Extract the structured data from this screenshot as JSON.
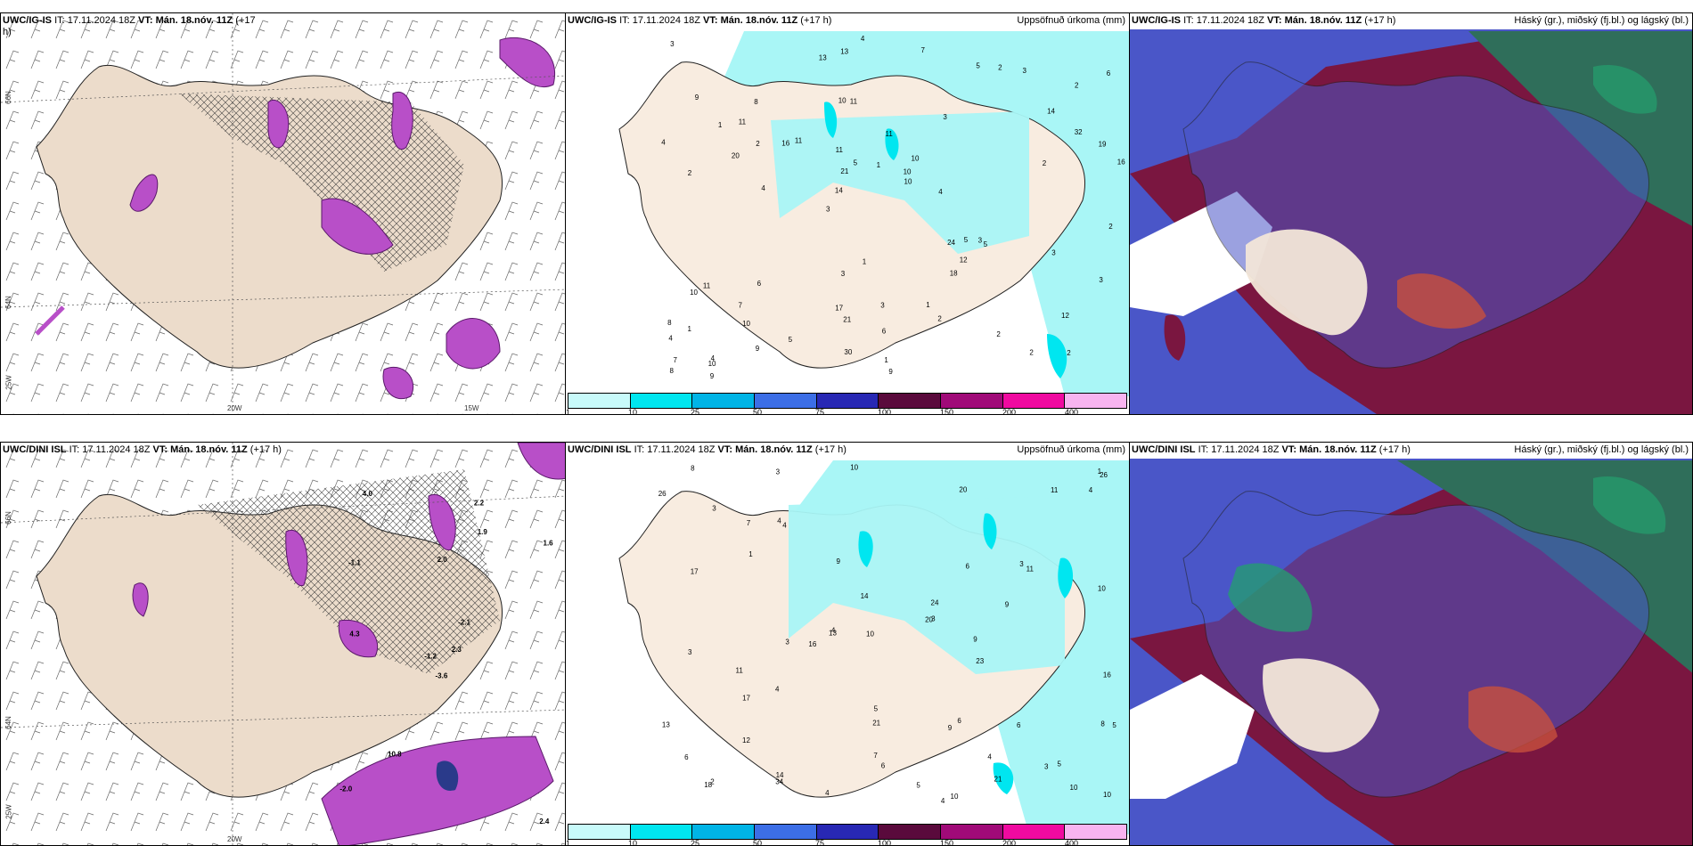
{
  "panels": [
    {
      "model": "UWC/IG-IS",
      "it": "IT: 17.11.2024 18Z",
      "vt": "VT: Mán. 18.nóv. 11Z",
      "lead": "(+17",
      "lead2": "h)",
      "right": ""
    },
    {
      "model": "UWC/IG-IS",
      "it": "IT: 17.11.2024 18Z",
      "vt": "VT: Mán. 18.nóv. 11Z",
      "lead": "(+17 h)",
      "right": "Uppsöfnuð úrkoma (mm)"
    },
    {
      "model": "UWC/IG-IS",
      "it": "IT: 17.11.2024 18Z",
      "vt": "VT: Mán. 18.nóv. 11Z",
      "lead": "(+17 h)",
      "right": "Háský (gr.), miðský (fj.bl.) og lágský (bl.)"
    },
    {
      "model": "UWC/DINI ISL",
      "it": "IT: 17.11.2024 18Z",
      "vt": "VT: Mán. 18.nóv. 11Z",
      "lead": "(+17 h)",
      "right": ""
    },
    {
      "model": "UWC/DINI ISL",
      "it": "IT: 17.11.2024 18Z",
      "vt": "VT: Mán. 18.nóv. 11Z",
      "lead": "(+17 h)",
      "right": "Uppsöfnuð úrkoma (mm)"
    },
    {
      "model": "UWC/DINI ISL",
      "it": "IT: 17.11.2024 18Z",
      "vt": "VT: Mán. 18.nóv. 11Z",
      "lead": "(+17 h)",
      "right": "Háský (gr.), miðský (fj.bl.) og lágský (bl.)"
    }
  ],
  "colorbar": {
    "ticks": [
      "1",
      "10",
      "25",
      "50",
      "75",
      "100",
      "150",
      "200",
      "400"
    ],
    "colors": [
      "#c8fafa",
      "#00e6f0",
      "#00b4e6",
      "#3c6ee6",
      "#2828b4",
      "#5a0a3c",
      "#a00a78",
      "#f00aa0",
      "#f8b4f0"
    ]
  },
  "map_labels": {
    "lat66": "66N",
    "lat64": "64N",
    "lon20": "20W",
    "lon15": "15W",
    "lon25": "25W"
  },
  "precip_numbers_top": [
    "2",
    "2",
    "2",
    "3",
    "3",
    "4",
    "10",
    "11",
    "11",
    "11",
    "4",
    "10",
    "11",
    "10",
    "5",
    "9",
    "13",
    "16",
    "24",
    "32",
    "14",
    "17",
    "21",
    "8",
    "5",
    "6",
    "2",
    "12",
    "3",
    "9",
    "16",
    "20",
    "18",
    "9",
    "19",
    "10",
    "7",
    "21",
    "10",
    "10",
    "14",
    "6",
    "12",
    "2",
    "7",
    "9",
    "8",
    "3",
    "3",
    "4",
    "4",
    "4",
    "11",
    "2",
    "10",
    "7",
    "13",
    "5",
    "3",
    "3",
    "5",
    "5",
    "2",
    "8",
    "3",
    "1",
    "2",
    "11",
    "6",
    "1",
    "1",
    "4",
    "3",
    "30",
    "2",
    "1",
    "2",
    "1",
    "1"
  ],
  "precip_numbers_bottom": [
    "4",
    "4",
    "14",
    "4",
    "3",
    "3",
    "3",
    "10",
    "10",
    "9",
    "11",
    "6",
    "4",
    "21",
    "20",
    "20",
    "17",
    "34",
    "16",
    "26",
    "9",
    "26",
    "24",
    "18",
    "11",
    "11",
    "13",
    "17",
    "8",
    "23",
    "10",
    "10",
    "5",
    "4",
    "12",
    "9",
    "8",
    "6",
    "6",
    "5",
    "3",
    "9",
    "5",
    "2",
    "4",
    "6",
    "16",
    "5",
    "7",
    "7",
    "1",
    "10",
    "10",
    "6",
    "4",
    "3",
    "13",
    "14",
    "4",
    "3",
    "3",
    "21",
    "1"
  ],
  "temp_values_bottom": [
    "-3.6",
    "-1.1",
    "-1.2",
    "-2.0",
    "-2.1",
    "10.8",
    "2.2",
    "2.0",
    "1.9",
    "2.3",
    "4.0",
    "2.4",
    "4.3",
    "1.6"
  ]
}
